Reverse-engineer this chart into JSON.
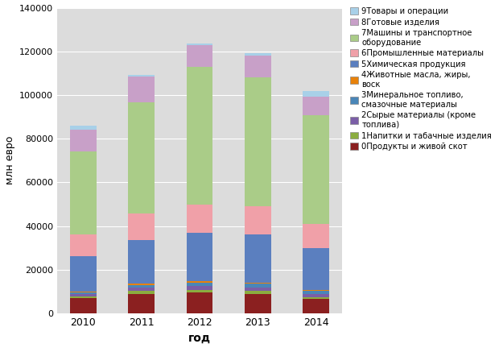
{
  "years": [
    2010,
    2011,
    2012,
    2013,
    2014
  ],
  "xlabel": "год",
  "ylabel": "млн евро",
  "ylim": [
    0,
    140000
  ],
  "yticks": [
    0,
    20000,
    40000,
    60000,
    80000,
    100000,
    120000,
    140000
  ],
  "categories": [
    "0Продукты и живой скот",
    "1Напитки и табачные изделия",
    "2Сырые материалы (кроме\nтоплива)",
    "3Минеральное топливо,\nсмазочные материалы",
    "4Животные масла, жиры,\nвоск",
    "5Химическая продукция",
    "6Промышленные материалы",
    "7Машины и транспортное\nоборудование",
    "8Готовые изделия",
    "9Товары и операции"
  ],
  "legend_labels": [
    "0Продукты и живой скот",
    "1Напитки и табачные изделия",
    "2Сырые материалы (кроме\nтоплива)",
    "3Минеральное топливо,\nсмазочные материалы",
    "4Животные масла, жиры,\nвоск",
    "5Химическая продукция",
    "6Промышленные материалы",
    "7Машины и транспортное\nоборудование",
    "8Готовые изделия",
    "9Товары и операции"
  ],
  "colors": [
    "#8B2020",
    "#8BAD3F",
    "#7B5EA7",
    "#4A86B8",
    "#E8820A",
    "#5B7FBF",
    "#F0A0A8",
    "#AACC88",
    "#C8A0C8",
    "#A8D0E8"
  ],
  "data": {
    "0Продукты и живой скот": [
      7000,
      9000,
      9500,
      9000,
      6500
    ],
    "1Напитки и табачные изделия": [
      800,
      1200,
      1200,
      1200,
      1000
    ],
    "2Сырые материалы (кроме\nтоплива)": [
      1200,
      1800,
      2000,
      1800,
      1500
    ],
    "3Минеральное топливо,\nсмазочные материалы": [
      700,
      1000,
      1500,
      1500,
      1200
    ],
    "4Животные масла, жиры,\nвоск": [
      400,
      600,
      700,
      700,
      600
    ],
    "5Химическая продукция": [
      16000,
      20000,
      22000,
      22000,
      19000
    ],
    "6Промышленные материалы": [
      10000,
      12000,
      13000,
      13000,
      11000
    ],
    "7Машины и транспортное\nоборудование": [
      38000,
      51000,
      63000,
      59000,
      50000
    ],
    "8Готовые изделия": [
      10000,
      12000,
      10000,
      10000,
      8500
    ],
    "9Товары и операции": [
      2000,
      500,
      800,
      1000,
      2500
    ]
  }
}
